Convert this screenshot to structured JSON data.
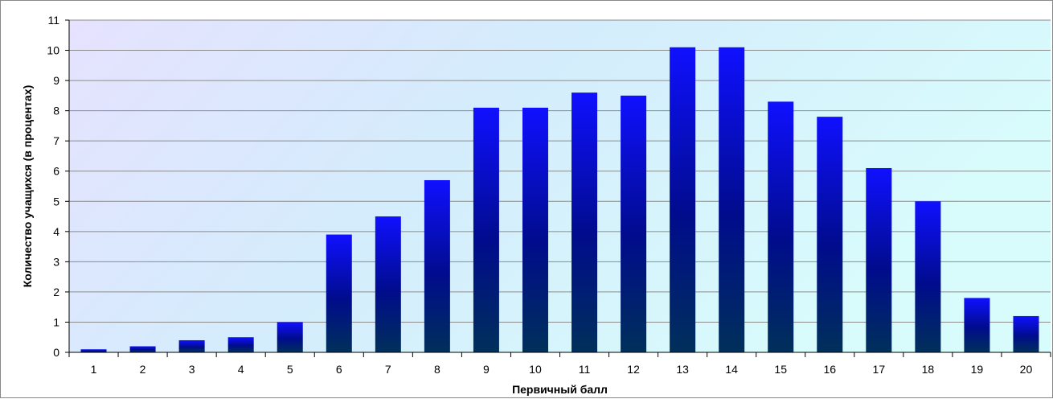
{
  "chart_data": {
    "type": "bar",
    "title": "",
    "xlabel": "Первичный балл",
    "ylabel": "Количество учащихся (в процентах)",
    "categories": [
      "1",
      "2",
      "3",
      "4",
      "5",
      "6",
      "7",
      "8",
      "9",
      "10",
      "11",
      "12",
      "13",
      "14",
      "15",
      "16",
      "17",
      "18",
      "19",
      "20"
    ],
    "values": [
      0.1,
      0.2,
      0.4,
      0.5,
      1.0,
      3.9,
      4.5,
      5.7,
      8.1,
      8.1,
      8.6,
      8.5,
      10.1,
      10.1,
      8.3,
      7.8,
      6.1,
      5.0,
      1.8,
      1.2
    ],
    "ylim": [
      0,
      11
    ],
    "yticks": [
      0,
      1,
      2,
      3,
      4,
      5,
      6,
      7,
      8,
      9,
      10,
      11
    ],
    "grid": true,
    "legend": "none",
    "colors": {
      "bar_top": "#1010ff",
      "bar_mid": "#000c8c",
      "bar_bottom": "#00305a",
      "plot_bg_left": "#e6e2ff",
      "plot_bg_mid": "#d4ecfc",
      "plot_bg_right": "#d8fcfc",
      "gridline": "#8c8c8c"
    }
  }
}
